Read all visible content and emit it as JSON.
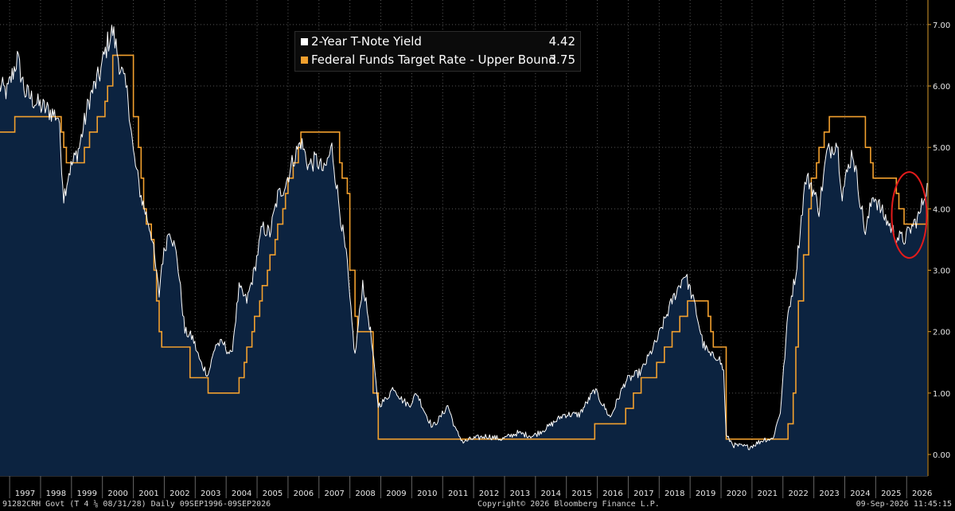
{
  "chart_data": {
    "type": "line",
    "title": "",
    "xlabel": "",
    "ylabel": "",
    "x_tick_labels": [
      "1997",
      "1998",
      "1999",
      "2000",
      "2001",
      "2002",
      "2003",
      "2004",
      "2005",
      "2006",
      "2007",
      "2008",
      "2009",
      "2010",
      "2011",
      "2012",
      "2013",
      "2014",
      "2015",
      "2016",
      "2017",
      "2018",
      "2019",
      "2020",
      "2021",
      "2022",
      "2023",
      "2024",
      "2025",
      "2026"
    ],
    "y_tick_labels": [
      "0.00",
      "1.00",
      "2.00",
      "3.00",
      "4.00",
      "5.00",
      "6.00",
      "7.00"
    ],
    "xlim": [
      "1996-09-09",
      "2026-09-09"
    ],
    "ylim": [
      -0.35,
      7.4
    ],
    "grid": true,
    "legend_position": "top-center",
    "series": [
      {
        "name": "2-Year T-Note Yield",
        "legend_value": "4.42",
        "color": "#ffffff",
        "fill": "#0c2340",
        "style": "line-with-area",
        "x": [
          "1996-09",
          "1996-12",
          "1997-04",
          "1997-07",
          "1997-12",
          "1998-04",
          "1998-08",
          "1998-10",
          "1998-12",
          "1999-04",
          "1999-08",
          "1999-12",
          "2000-03",
          "2000-05",
          "2000-08",
          "2000-11",
          "2001-01",
          "2001-04",
          "2001-08",
          "2001-11",
          "2001-12",
          "2002-03",
          "2002-06",
          "2002-09",
          "2002-12",
          "2003-03",
          "2003-06",
          "2003-09",
          "2003-12",
          "2004-03",
          "2004-06",
          "2004-09",
          "2004-12",
          "2005-03",
          "2005-06",
          "2005-09",
          "2005-12",
          "2006-03",
          "2006-06",
          "2006-09",
          "2006-12",
          "2007-03",
          "2007-06",
          "2007-09",
          "2007-12",
          "2008-01",
          "2008-03",
          "2008-06",
          "2008-09",
          "2008-12",
          "2009-03",
          "2009-06",
          "2009-09",
          "2009-12",
          "2010-03",
          "2010-06",
          "2010-09",
          "2010-12",
          "2011-03",
          "2011-06",
          "2011-09",
          "2011-12",
          "2012-06",
          "2012-12",
          "2013-06",
          "2013-12",
          "2014-06",
          "2014-12",
          "2015-06",
          "2015-12",
          "2016-06",
          "2016-12",
          "2017-06",
          "2017-12",
          "2018-06",
          "2018-11",
          "2019-03",
          "2019-06",
          "2019-09",
          "2019-12",
          "2020-02",
          "2020-03",
          "2020-06",
          "2020-12",
          "2021-06",
          "2021-09",
          "2021-12",
          "2022-03",
          "2022-06",
          "2022-09",
          "2022-10",
          "2022-12",
          "2023-03",
          "2023-06",
          "2023-10",
          "2023-12",
          "2024-04",
          "2024-09",
          "2024-12",
          "2025-04",
          "2025-09",
          "2025-12",
          "2026-03",
          "2026-06",
          "2026-09"
        ],
        "y": [
          6.0,
          5.9,
          6.45,
          5.9,
          5.7,
          5.6,
          5.5,
          4.2,
          4.6,
          5.0,
          5.8,
          6.2,
          6.7,
          6.9,
          6.3,
          5.8,
          4.9,
          4.2,
          3.6,
          2.6,
          3.1,
          3.7,
          3.2,
          2.0,
          1.9,
          1.5,
          1.3,
          1.8,
          1.8,
          1.6,
          2.7,
          2.5,
          3.0,
          3.7,
          3.6,
          4.2,
          4.4,
          4.8,
          5.1,
          4.7,
          4.8,
          4.6,
          5.0,
          4.0,
          3.1,
          2.5,
          1.6,
          2.8,
          2.0,
          0.8,
          0.9,
          1.1,
          0.9,
          0.8,
          1.0,
          0.7,
          0.45,
          0.6,
          0.8,
          0.4,
          0.2,
          0.25,
          0.3,
          0.25,
          0.35,
          0.3,
          0.45,
          0.65,
          0.65,
          1.05,
          0.6,
          1.2,
          1.35,
          1.85,
          2.5,
          2.95,
          2.4,
          1.8,
          1.6,
          1.6,
          1.35,
          0.3,
          0.15,
          0.12,
          0.25,
          0.25,
          0.7,
          2.3,
          2.95,
          4.2,
          4.5,
          4.4,
          4.0,
          4.9,
          5.1,
          4.25,
          4.95,
          3.6,
          4.25,
          3.9,
          3.55,
          3.5,
          3.7,
          3.9,
          4.42
        ]
      },
      {
        "name": "Federal Funds Target Rate - Upper Bound",
        "legend_value": "3.75",
        "color": "#f2a02e",
        "style": "step",
        "x": [
          "1996-09",
          "1997-03",
          "1998-09",
          "1998-10",
          "1998-11",
          "1999-06",
          "1999-08",
          "1999-11",
          "2000-02",
          "2000-03",
          "2000-05",
          "2001-01",
          "2001-02",
          "2001-03",
          "2001-04",
          "2001-05",
          "2001-06",
          "2001-08",
          "2001-09",
          "2001-10",
          "2001-11",
          "2001-12",
          "2002-11",
          "2003-06",
          "2004-06",
          "2004-08",
          "2004-09",
          "2004-11",
          "2004-12",
          "2005-02",
          "2005-03",
          "2005-05",
          "2005-06",
          "2005-08",
          "2005-09",
          "2005-11",
          "2005-12",
          "2006-01",
          "2006-03",
          "2006-05",
          "2006-06",
          "2007-09",
          "2007-10",
          "2007-12",
          "2008-01",
          "2008-03",
          "2008-04",
          "2008-10",
          "2008-12",
          "2015-12",
          "2016-12",
          "2017-03",
          "2017-06",
          "2017-12",
          "2018-03",
          "2018-06",
          "2018-09",
          "2018-12",
          "2019-08",
          "2019-09",
          "2019-10",
          "2020-03",
          "2022-03",
          "2022-05",
          "2022-06",
          "2022-07",
          "2022-09",
          "2022-11",
          "2022-12",
          "2023-02",
          "2023-03",
          "2023-05",
          "2023-07",
          "2024-09",
          "2024-11",
          "2024-12",
          "2025-09",
          "2025-10",
          "2025-12",
          "2026-09"
        ],
        "y": [
          5.25,
          5.5,
          5.25,
          5.0,
          4.75,
          5.0,
          5.25,
          5.5,
          5.75,
          6.0,
          6.5,
          5.5,
          5.5,
          5.0,
          4.5,
          4.0,
          3.75,
          3.5,
          3.0,
          2.5,
          2.0,
          1.75,
          1.25,
          1.0,
          1.25,
          1.5,
          1.75,
          2.0,
          2.25,
          2.5,
          2.75,
          3.0,
          3.25,
          3.5,
          3.75,
          4.0,
          4.25,
          4.5,
          4.75,
          5.0,
          5.25,
          4.75,
          4.5,
          4.25,
          3.0,
          2.25,
          2.0,
          1.0,
          0.25,
          0.5,
          0.75,
          1.0,
          1.25,
          1.5,
          1.75,
          2.0,
          2.25,
          2.5,
          2.25,
          2.0,
          1.75,
          0.25,
          0.5,
          1.0,
          1.75,
          2.5,
          3.25,
          4.0,
          4.5,
          4.75,
          5.0,
          5.25,
          5.5,
          5.0,
          4.75,
          4.5,
          4.25,
          4.0,
          3.75,
          3.75
        ]
      }
    ],
    "annotations": [
      {
        "type": "ellipse",
        "color": "#e31b1b",
        "x_center": "2026-02",
        "y_center": 3.9,
        "label": ""
      }
    ]
  },
  "footer": {
    "left": "91282CRH Govt (T 4 ⅛ 08/31/28) Daily 09SEP1996-09SEP2026",
    "center": "Copyright© 2026 Bloomberg Finance L.P.",
    "right": "09-Sep-2026 11:45:15"
  }
}
